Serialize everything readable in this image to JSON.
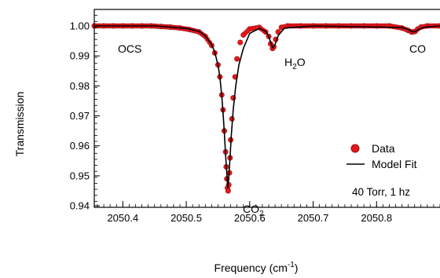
{
  "chart_data": {
    "type": "scatter",
    "xlabel": "Frequency (cm⁻¹)",
    "ylabel": "Transmission",
    "xlim": [
      2050.355,
      2050.9
    ],
    "ylim": [
      0.9395,
      1.0055
    ],
    "x_ticks": [
      "2050.4",
      "2050.5",
      "2050.6",
      "2050.7",
      "2050.8"
    ],
    "x_tick_values": [
      2050.4,
      2050.5,
      2050.6,
      2050.7,
      2050.8
    ],
    "y_ticks": [
      "0.94",
      "0.95",
      "0.96",
      "0.97",
      "0.98",
      "0.99",
      "1.00"
    ],
    "y_tick_values": [
      0.94,
      0.95,
      0.96,
      0.97,
      0.98,
      0.99,
      1.0
    ],
    "grid": false,
    "legend_position": "right",
    "colors": {
      "data": "#e8161b",
      "data_edge": "#9a1010",
      "fit": "#000000"
    },
    "series": [
      {
        "name": "Data",
        "style": "markers",
        "x": [
          2050.355,
          2050.37,
          2050.385,
          2050.4,
          2050.415,
          2050.43,
          2050.445,
          2050.46,
          2050.475,
          2050.49,
          2050.505,
          2050.52,
          2050.53,
          2050.54,
          2050.545,
          2050.55,
          2050.553,
          2050.556,
          2050.558,
          2050.56,
          2050.562,
          2050.563,
          2050.564,
          2050.565,
          2050.566,
          2050.567,
          2050.568,
          2050.569,
          2050.57,
          2050.572,
          2050.574,
          2050.577,
          2050.58,
          2050.585,
          2050.59,
          2050.6,
          2050.615,
          2050.625,
          2050.63,
          2050.633,
          2050.636,
          2050.638,
          2050.641,
          2050.645,
          2050.65,
          2050.66,
          2050.68,
          2050.7,
          2050.72,
          2050.74,
          2050.76,
          2050.78,
          2050.8,
          2050.82,
          2050.84,
          2050.85,
          2050.855,
          2050.858,
          2050.861,
          2050.865,
          2050.87,
          2050.88,
          2050.9
        ],
        "y": [
          1.0,
          1.0,
          1.0,
          1.0,
          1.0,
          1.0,
          1.0,
          0.9998,
          0.9996,
          0.9993,
          0.9988,
          0.998,
          0.9965,
          0.9935,
          0.991,
          0.987,
          0.983,
          0.977,
          0.972,
          0.965,
          0.958,
          0.953,
          0.949,
          0.946,
          0.945,
          0.947,
          0.951,
          0.956,
          0.962,
          0.969,
          0.976,
          0.983,
          0.989,
          0.9945,
          0.997,
          0.999,
          0.9995,
          0.998,
          0.9965,
          0.994,
          0.9925,
          0.993,
          0.9955,
          0.998,
          0.9995,
          1.0,
          1.0,
          1.0,
          1.0,
          1.0,
          1.0,
          1.0,
          1.0,
          1.0,
          0.9993,
          0.9985,
          0.998,
          0.998,
          0.9982,
          0.999,
          0.9996,
          1.0,
          1.0
        ]
      },
      {
        "name": "Model Fit",
        "style": "line",
        "x": [
          2050.355,
          2050.45,
          2050.5,
          2050.52,
          2050.53,
          2050.54,
          2050.545,
          2050.55,
          2050.553,
          2050.556,
          2050.558,
          2050.56,
          2050.562,
          2050.564,
          2050.5655,
          2050.567,
          2050.569,
          2050.571,
          2050.574,
          2050.578,
          2050.583,
          2050.59,
          2050.6,
          2050.615,
          2050.625,
          2050.63,
          2050.633,
          2050.6365,
          2050.64,
          2050.645,
          2050.655,
          2050.7,
          2050.84,
          2050.85,
          2050.855,
          2050.858,
          2050.861,
          2050.866,
          2050.875,
          2050.9
        ],
        "y": [
          1.0,
          1.0,
          0.9992,
          0.9982,
          0.9967,
          0.9938,
          0.9912,
          0.987,
          0.983,
          0.9765,
          0.971,
          0.9645,
          0.957,
          0.9505,
          0.946,
          0.9495,
          0.956,
          0.9635,
          0.972,
          0.98,
          0.987,
          0.9925,
          0.9975,
          0.9992,
          0.9982,
          0.9966,
          0.9945,
          0.9927,
          0.9938,
          0.9968,
          0.9993,
          1.0,
          0.9995,
          0.9988,
          0.9982,
          0.998,
          0.9981,
          0.9988,
          0.9996,
          1.0
        ]
      }
    ],
    "annotations": [
      {
        "text": "OCS"
      },
      {
        "text": "H",
        "sub": "2",
        "tail": "O"
      },
      {
        "text": "CO",
        "sub": "2",
        "tail": ""
      },
      {
        "text": "CO"
      }
    ],
    "legend": [
      {
        "label": "Data"
      },
      {
        "label": "Model Fit"
      }
    ],
    "condition_text": "40 Torr, 1 hz"
  }
}
